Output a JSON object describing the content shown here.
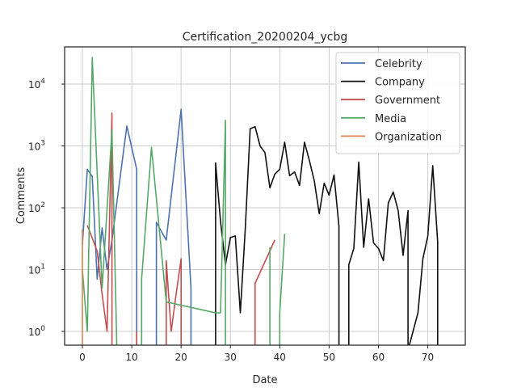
{
  "chart_data": {
    "type": "line",
    "title": "Certification_20200204_ycbg",
    "xlabel": "Date",
    "ylabel": "Comments",
    "xlim": [
      -3.6,
      77.6
    ],
    "ylim": [
      0.6,
      40000
    ],
    "yscale": "log",
    "x_ticks": [
      0,
      10,
      20,
      30,
      40,
      50,
      60,
      70
    ],
    "y_ticks": [
      {
        "value": 1,
        "base": "10",
        "exp": "0"
      },
      {
        "value": 10,
        "base": "10",
        "exp": "1"
      },
      {
        "value": 100,
        "base": "10",
        "exp": "2"
      },
      {
        "value": 1000,
        "base": "10",
        "exp": "3"
      },
      {
        "value": 10000,
        "base": "10",
        "exp": "4"
      }
    ],
    "grid": true,
    "legend_position": "top-right",
    "series": [
      {
        "name": "Celebrity",
        "color": "#4c72b0",
        "points": [
          [
            0,
            25
          ],
          [
            1,
            420
          ],
          [
            2,
            320
          ],
          [
            3,
            7
          ],
          [
            4,
            47
          ],
          [
            5,
            10
          ],
          [
            6,
            30
          ],
          [
            9,
            2100
          ],
          [
            11,
            420
          ],
          [
            11,
            0.5
          ],
          null,
          [
            15,
            0.5
          ],
          [
            15,
            58
          ],
          [
            17,
            30
          ],
          [
            20,
            3900
          ],
          [
            22,
            5
          ],
          [
            22,
            0.5
          ]
        ]
      },
      {
        "name": "Company",
        "color": "#111111",
        "points": [
          [
            27,
            0.5
          ],
          [
            27,
            530
          ],
          [
            28,
            60
          ],
          [
            29,
            12
          ],
          [
            30,
            33
          ],
          [
            31,
            35
          ],
          [
            32,
            2
          ],
          [
            33,
            45
          ],
          [
            34,
            1900
          ],
          [
            35,
            2050
          ],
          [
            36,
            1000
          ],
          [
            37,
            780
          ],
          [
            38,
            210
          ],
          [
            39,
            350
          ],
          [
            40,
            420
          ],
          [
            41,
            1150
          ],
          [
            42,
            330
          ],
          [
            43,
            380
          ],
          [
            44,
            230
          ],
          [
            45,
            1150
          ],
          [
            46,
            580
          ],
          [
            47,
            270
          ],
          [
            48,
            80
          ],
          [
            49,
            250
          ],
          [
            50,
            160
          ],
          [
            51,
            340
          ],
          [
            52,
            50
          ],
          [
            52,
            0.5
          ],
          null,
          [
            54,
            0.5
          ],
          [
            54,
            12
          ],
          [
            55,
            22
          ],
          [
            56,
            550
          ],
          [
            57,
            23
          ],
          [
            58,
            140
          ],
          [
            59,
            27
          ],
          [
            60,
            22
          ],
          [
            61,
            14
          ],
          [
            62,
            120
          ],
          [
            63,
            180
          ],
          [
            64,
            90
          ],
          [
            65,
            17
          ],
          [
            66,
            90
          ],
          [
            66,
            0.5
          ],
          [
            67,
            1
          ],
          [
            68,
            2
          ],
          [
            69,
            15
          ],
          [
            70,
            35
          ],
          [
            71,
            480
          ],
          [
            72,
            28
          ],
          [
            72,
            0.5
          ]
        ]
      },
      {
        "name": "Government",
        "color": "#c44e52",
        "points": [
          [
            1,
            52
          ],
          [
            3,
            20
          ],
          [
            4,
            4
          ],
          [
            5,
            1
          ],
          [
            6,
            3400
          ],
          [
            6,
            0.5
          ],
          null,
          [
            11,
            0.5
          ],
          [
            11,
            1
          ],
          null,
          [
            17,
            0.5
          ],
          [
            17,
            14
          ],
          [
            18,
            1
          ],
          [
            19,
            4
          ],
          [
            20,
            15
          ],
          [
            20,
            0.5
          ],
          null,
          [
            35,
            0.5
          ],
          [
            35,
            6
          ],
          [
            39,
            30
          ]
        ]
      },
      {
        "name": "Media",
        "color": "#55a868",
        "points": [
          [
            0,
            10
          ],
          [
            1,
            1
          ],
          [
            2,
            27000
          ],
          [
            4,
            5
          ],
          [
            6,
            1800
          ],
          [
            7,
            0.5
          ],
          null,
          [
            12,
            0.5
          ],
          [
            12,
            7
          ],
          [
            14,
            950
          ],
          [
            17,
            3
          ],
          [
            27,
            2
          ],
          [
            28,
            2
          ],
          [
            29,
            2600
          ],
          [
            29,
            0.5
          ],
          null,
          [
            38,
            0.5
          ],
          [
            38,
            23
          ],
          null,
          [
            40,
            0.5
          ],
          [
            40,
            2
          ],
          [
            41,
            38
          ]
        ]
      },
      {
        "name": "Organization",
        "color": "#dd8452",
        "points": [
          [
            0,
            45
          ],
          [
            0,
            0.5
          ]
        ]
      }
    ]
  }
}
